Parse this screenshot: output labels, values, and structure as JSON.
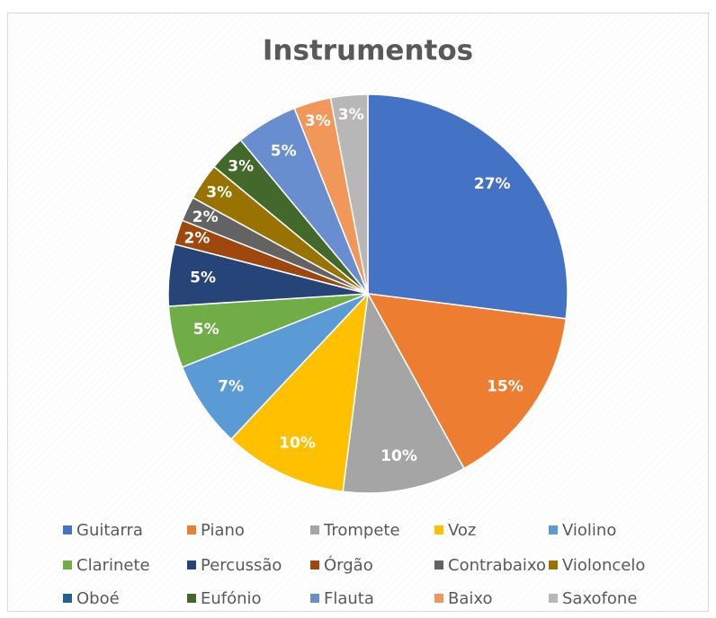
{
  "chart_data": {
    "type": "pie",
    "title": "Instrumentos",
    "categories": [
      "Guitarra",
      "Piano",
      "Trompete",
      "Voz",
      "Violino",
      "Clarinete",
      "Percussão",
      "Órgão",
      "Contrabaixo",
      "Violoncelo",
      "Oboé",
      "Eufónio",
      "Flauta",
      "Baixo",
      "Saxofone"
    ],
    "values": [
      27,
      15,
      10,
      10,
      7,
      5,
      5,
      2,
      2,
      3,
      0,
      3,
      5,
      3,
      3
    ],
    "value_labels": [
      "27%",
      "15%",
      "10%",
      "10%",
      "7%",
      "5%",
      "5%",
      "2%",
      "2%",
      "3%",
      null,
      "3%",
      "5%",
      "3%",
      "3%"
    ],
    "colors": [
      "#4472C4",
      "#ED7D31",
      "#A5A5A5",
      "#FFC000",
      "#5B9BD5",
      "#70AD47",
      "#264478",
      "#9E480E",
      "#636363",
      "#997300",
      "#255E91",
      "#43682B",
      "#698ED0",
      "#F1975A",
      "#B7B7B7"
    ],
    "legend": "bottom"
  }
}
